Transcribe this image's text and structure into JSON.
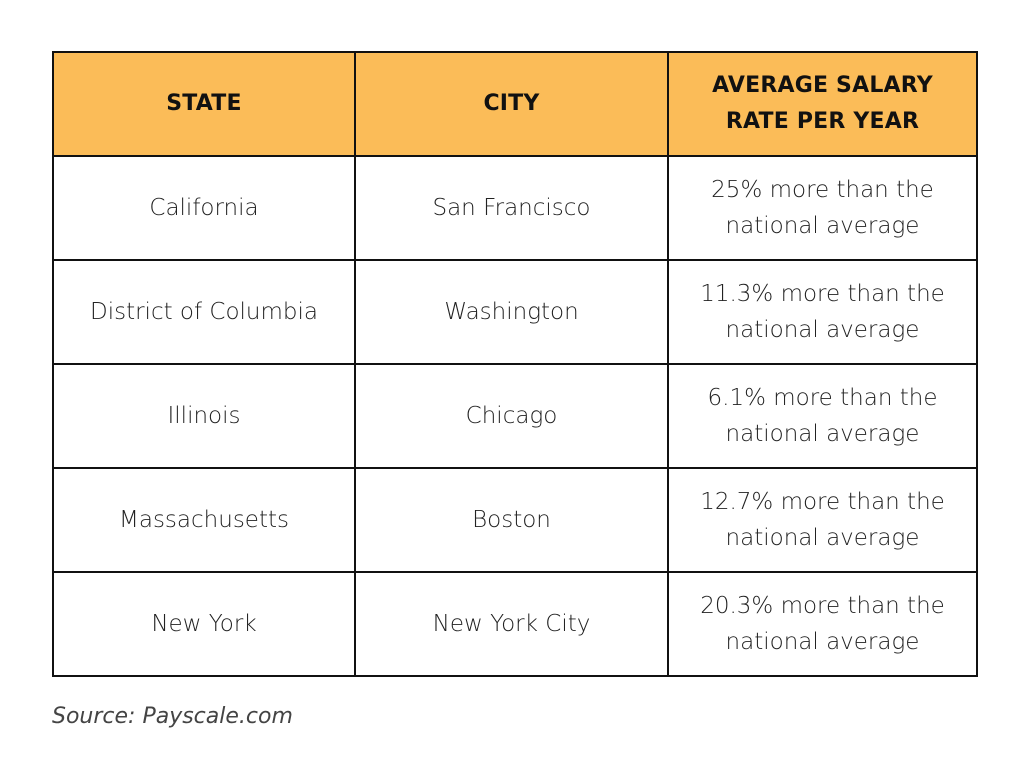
{
  "table": {
    "headers": [
      "STATE",
      "CITY",
      "AVERAGE SALARY RATE PER YEAR"
    ],
    "header_color": "#FBBC58",
    "rows": [
      {
        "state": "California",
        "city": "San Francisco",
        "rate": "25% more than the national average"
      },
      {
        "state": "District of Columbia",
        "city": "Washington",
        "rate": "11.3% more than the national average"
      },
      {
        "state": "Illinois",
        "city": "Chicago",
        "rate": "6.1% more than the national average"
      },
      {
        "state": "Massachusetts",
        "city": "Boston",
        "rate": "12.7% more than the national average"
      },
      {
        "state": "New York",
        "city": "New York City",
        "rate": "20.3% more than the national average"
      }
    ]
  },
  "source": "Source: Payscale.com"
}
